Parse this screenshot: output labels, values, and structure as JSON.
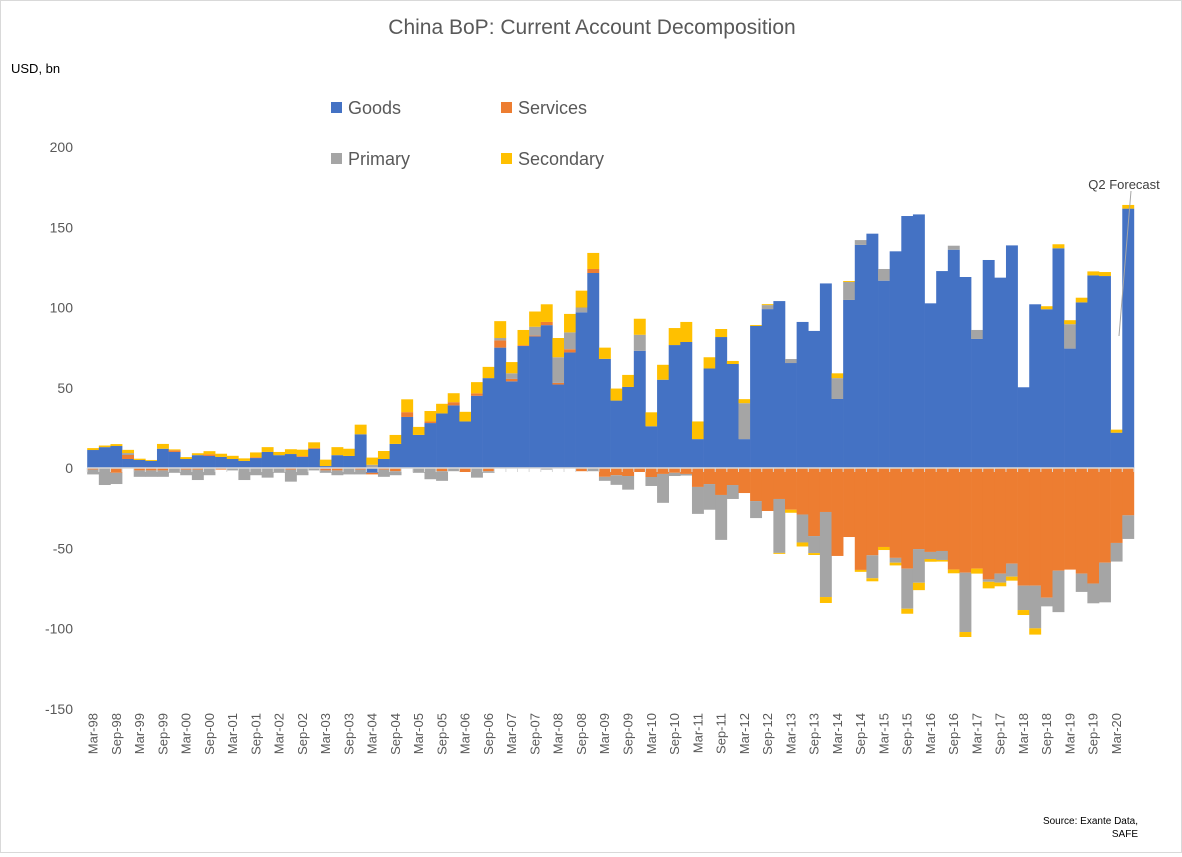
{
  "chart_data": {
    "type": "bar",
    "stacked": true,
    "title": "China BoP: Current Account Decomposition",
    "ylabel": "USD, bn",
    "ylim": [
      -150,
      200
    ],
    "yticks": [
      -150,
      -100,
      -50,
      0,
      50,
      100,
      150,
      200
    ],
    "grid": false,
    "legend_placement": "top-left",
    "frequency": "quarterly",
    "x_tick_labels": [
      "Mar-98",
      "Sep-98",
      "Mar-99",
      "Sep-99",
      "Mar-00",
      "Sep-00",
      "Mar-01",
      "Sep-01",
      "Mar-02",
      "Sep-02",
      "Mar-03",
      "Sep-03",
      "Mar-04",
      "Sep-04",
      "Mar-05",
      "Sep-05",
      "Mar-06",
      "Sep-06",
      "Mar-07",
      "Sep-07",
      "Mar-08",
      "Sep-08",
      "Mar-09",
      "Sep-09",
      "Mar-10",
      "Sep-10",
      "Mar-11",
      "Sep-11",
      "Mar-12",
      "Sep-12",
      "Mar-13",
      "Sep-13",
      "Mar-14",
      "Sep-14",
      "Mar-15",
      "Sep-15",
      "Mar-16",
      "Sep-16",
      "Mar-17",
      "Sep-17",
      "Mar-18",
      "Sep-18",
      "Mar-19",
      "Sep-19",
      "Mar-20"
    ],
    "series": [
      {
        "name": "Goods",
        "color": "#4472C4",
        "values": [
          11.2,
          13,
          13.7,
          5.6,
          5,
          4.4,
          12,
          10,
          5.6,
          8,
          7.5,
          6.9,
          5.6,
          4.4,
          6.2,
          10,
          8,
          8.7,
          6.9,
          12,
          1.2,
          8,
          7.5,
          21,
          -3,
          5.6,
          15,
          31.8,
          20.6,
          28,
          34,
          39,
          29,
          45,
          56,
          75,
          54,
          76,
          82,
          89,
          52,
          72,
          97,
          121.5,
          68,
          42,
          50.5,
          73,
          26,
          55,
          76.6,
          78.5,
          18,
          62,
          81.6,
          64.8,
          18,
          88.5,
          99,
          104,
          65.4,
          91,
          85.4,
          115,
          43,
          104.7,
          139,
          146,
          116.7,
          135,
          157,
          158,
          102.6,
          122.7,
          136,
          119,
          80.4,
          129.6,
          118.6,
          138.7,
          50.3,
          102,
          98.9,
          136.9,
          74.4,
          103.2,
          120,
          119.6,
          22,
          161.6
        ]
      },
      {
        "name": "Services",
        "color": "#ED7D31",
        "values": [
          -1,
          0,
          -3,
          2.5,
          -1.5,
          -1.5,
          -1.5,
          1,
          -1,
          -1,
          1,
          -1,
          0,
          0,
          0.5,
          0,
          0,
          -1,
          0.5,
          0.5,
          -1.5,
          -1.5,
          0,
          -1,
          -1,
          -1,
          -2,
          3,
          0,
          1,
          -2,
          2,
          -2.5,
          1.5,
          -2,
          4.5,
          1.5,
          0.5,
          0.5,
          2,
          1,
          2,
          -2,
          2.5,
          -5.5,
          -4.5,
          -5,
          -2.5,
          -5.6,
          -3.7,
          -3,
          -3.7,
          -11.8,
          -10,
          -16.8,
          -10.6,
          -15.6,
          -20.6,
          -26.8,
          -19.3,
          -26,
          -29,
          -42.4,
          -27.4,
          -54.8,
          -43,
          -63.5,
          -54.4,
          -49.2,
          -56,
          -62.7,
          -50.5,
          -52.3,
          -51.7,
          -63.3,
          -65.2,
          -62.7,
          -69.4,
          -65.8,
          -59.6,
          -73.3,
          -73.3,
          -80.8,
          -64,
          -63.3,
          -65.8,
          -72,
          -59,
          -46.7,
          -29.5
        ]
      },
      {
        "name": "Primary",
        "color": "#A5A5A5",
        "values": [
          -3,
          -10.6,
          -7,
          1.2,
          -4,
          -4,
          -4,
          -3,
          -3.5,
          -6.5,
          -4.5,
          0,
          -1.5,
          -7.5,
          -4.5,
          -6,
          -3,
          -7.5,
          -4.5,
          -1.5,
          -1.5,
          -3,
          -4,
          -3,
          2,
          -4.5,
          -2.5,
          0,
          -3,
          -7,
          -6,
          -2,
          0,
          -6,
          -1,
          1.5,
          3.5,
          0,
          5.5,
          -1,
          16,
          10.5,
          3,
          -2,
          -2.5,
          -6,
          -8.5,
          10,
          -5.6,
          -18,
          -2,
          -1,
          -16.8,
          -16,
          -28,
          -8.7,
          22.4,
          -10.6,
          2.5,
          -33.6,
          2.5,
          -17.4,
          -10.6,
          -53,
          13,
          11.2,
          3,
          -14.3,
          7.3,
          -3,
          -25,
          -21,
          -4.4,
          -5.6,
          2.5,
          -37,
          5.6,
          -1.5,
          -5.6,
          -8.1,
          -15.2,
          -26.6,
          -5.4,
          -25.8,
          15.2,
          -11.4,
          -12.3,
          -24.7,
          -11.6,
          -14.7
        ]
      },
      {
        "name": "Secondary",
        "color": "#FFC000",
        "values": [
          1.2,
          1,
          1.2,
          2,
          0.8,
          0.6,
          3,
          0.6,
          1.2,
          1.2,
          2,
          2,
          2,
          1.6,
          3,
          3,
          2,
          3,
          4,
          3.5,
          4,
          5,
          4.5,
          6,
          4.5,
          5,
          5.6,
          8,
          5,
          6.5,
          6,
          5.6,
          6,
          7,
          7,
          10.5,
          7,
          9.5,
          9.5,
          11,
          12,
          11.5,
          10.5,
          10,
          7,
          7.5,
          7.5,
          10,
          8.7,
          9.3,
          10.6,
          12.5,
          11,
          7,
          5,
          1.9,
          2.5,
          0.6,
          0.6,
          -0.6,
          -1.9,
          -2.5,
          -1.2,
          -3.7,
          3,
          0.6,
          -1.2,
          -1.9,
          -1.9,
          -1.7,
          -3.1,
          -4.6,
          -1.7,
          -1,
          -2.3,
          -3.1,
          -3.1,
          -4.1,
          -2.3,
          -2.5,
          -3.1,
          -3.9,
          1.9,
          2.5,
          2.5,
          2.9,
          2.5,
          2.5,
          1.9,
          2.3
        ]
      }
    ],
    "annotations": [
      {
        "text": "Q2 Forecast",
        "target": "last bar"
      }
    ],
    "source": [
      "Source: Exante Data,",
      "SAFE"
    ]
  }
}
